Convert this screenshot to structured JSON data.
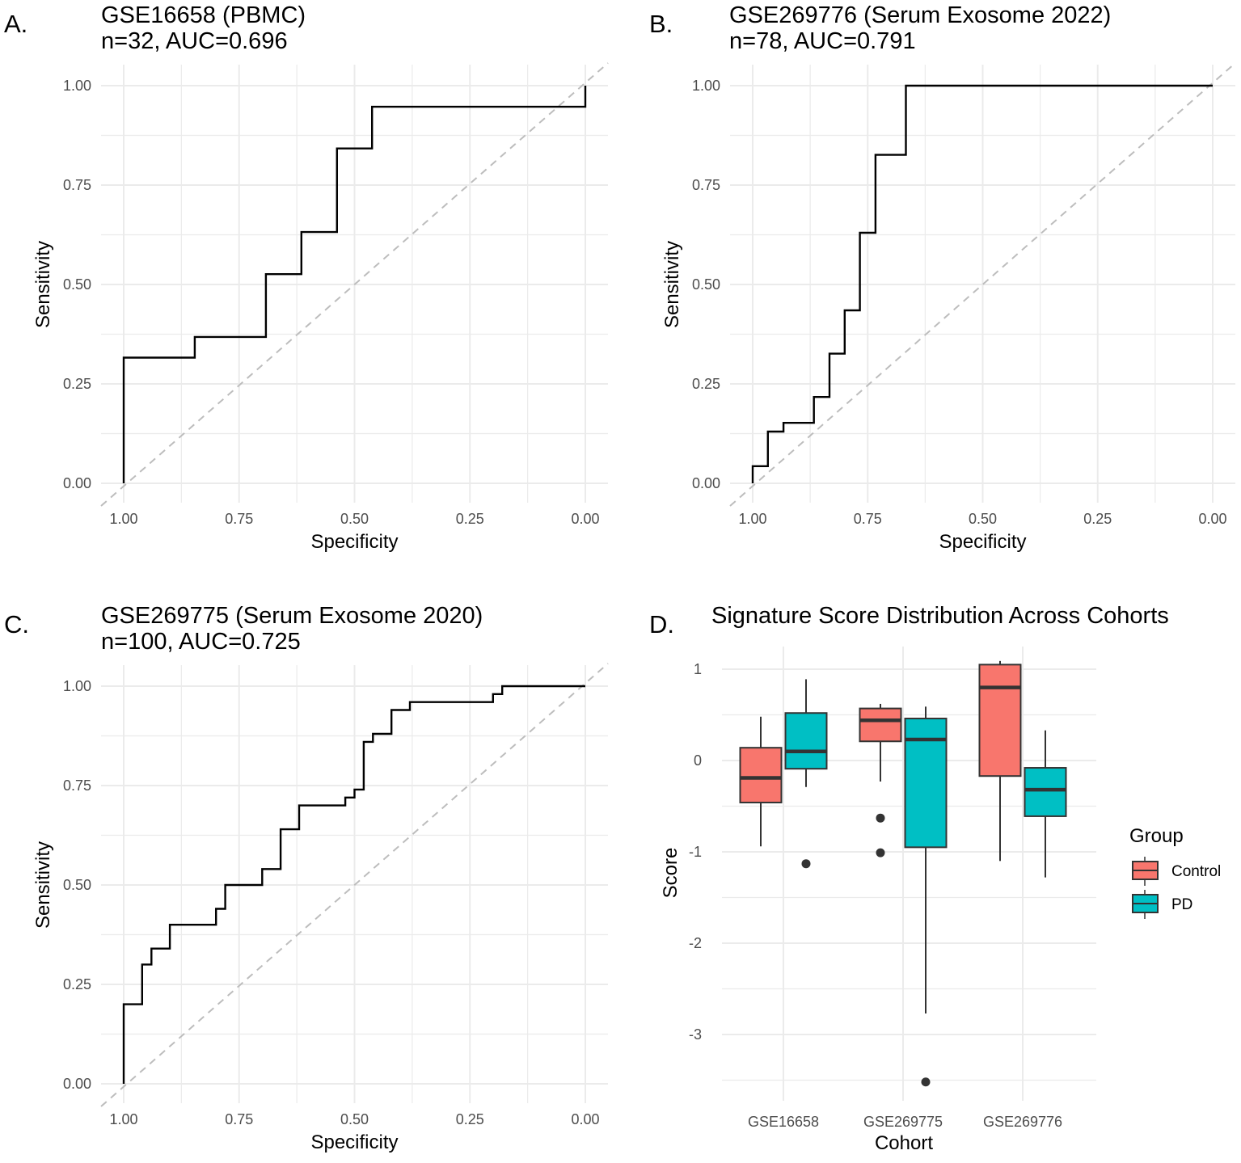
{
  "chart_data": [
    {
      "panel_label": "A.",
      "type": "line",
      "title": "GSE16658 (PBMC)",
      "subtitle": "n=32, AUC=0.696",
      "xlabel": "Specificity",
      "ylabel": "Sensitivity",
      "xlim": [
        1,
        0
      ],
      "ylim": [
        0,
        1
      ],
      "x_reversed": true,
      "grid": true,
      "xticks": [
        "1.00",
        "0.75",
        "0.50",
        "0.25",
        "0.00"
      ],
      "yticks": [
        "0.00",
        "0.25",
        "0.50",
        "0.75",
        "1.00"
      ],
      "reference_line": "diagonal dashed",
      "steps": [
        [
          1,
          0
        ],
        [
          1,
          0.316
        ],
        [
          0.846,
          0.316
        ],
        [
          0.846,
          0.368
        ],
        [
          0.692,
          0.368
        ],
        [
          0.692,
          0.526
        ],
        [
          0.615,
          0.526
        ],
        [
          0.615,
          0.632
        ],
        [
          0.538,
          0.632
        ],
        [
          0.538,
          0.842
        ],
        [
          0.462,
          0.842
        ],
        [
          0.462,
          0.947
        ],
        [
          0,
          0.947
        ],
        [
          0,
          1
        ]
      ]
    },
    {
      "panel_label": "B.",
      "type": "line",
      "title": "GSE269776 (Serum Exosome 2022)",
      "subtitle": "n=78, AUC=0.791",
      "xlabel": "Specificity",
      "ylabel": "Sensitivity",
      "xlim": [
        1,
        0
      ],
      "ylim": [
        0,
        1
      ],
      "x_reversed": true,
      "grid": true,
      "xticks": [
        "1.00",
        "0.75",
        "0.50",
        "0.25",
        "0.00"
      ],
      "yticks": [
        "0.00",
        "0.25",
        "0.50",
        "0.75",
        "1.00"
      ],
      "reference_line": "diagonal dashed",
      "steps": [
        [
          1,
          0
        ],
        [
          1,
          0.043
        ],
        [
          0.967,
          0.043
        ],
        [
          0.967,
          0.13
        ],
        [
          0.933,
          0.13
        ],
        [
          0.933,
          0.152
        ],
        [
          0.867,
          0.152
        ],
        [
          0.867,
          0.217
        ],
        [
          0.833,
          0.217
        ],
        [
          0.833,
          0.326
        ],
        [
          0.8,
          0.326
        ],
        [
          0.8,
          0.435
        ],
        [
          0.767,
          0.435
        ],
        [
          0.767,
          0.63
        ],
        [
          0.733,
          0.63
        ],
        [
          0.733,
          0.826
        ],
        [
          0.667,
          0.826
        ],
        [
          0.667,
          1
        ],
        [
          0,
          1
        ]
      ]
    },
    {
      "panel_label": "C.",
      "type": "line",
      "title": "GSE269775 (Serum Exosome 2020)",
      "subtitle": "n=100, AUC=0.725",
      "xlabel": "Specificity",
      "ylabel": "Sensitivity",
      "xlim": [
        1,
        0
      ],
      "ylim": [
        0,
        1
      ],
      "x_reversed": true,
      "grid": true,
      "xticks": [
        "1.00",
        "0.75",
        "0.50",
        "0.25",
        "0.00"
      ],
      "yticks": [
        "0.00",
        "0.25",
        "0.50",
        "0.75",
        "1.00"
      ],
      "reference_line": "diagonal dashed",
      "steps": [
        [
          1,
          0
        ],
        [
          1,
          0.2
        ],
        [
          0.96,
          0.2
        ],
        [
          0.96,
          0.3
        ],
        [
          0.94,
          0.3
        ],
        [
          0.94,
          0.34
        ],
        [
          0.9,
          0.34
        ],
        [
          0.9,
          0.4
        ],
        [
          0.8,
          0.4
        ],
        [
          0.8,
          0.44
        ],
        [
          0.78,
          0.44
        ],
        [
          0.78,
          0.5
        ],
        [
          0.7,
          0.5
        ],
        [
          0.7,
          0.54
        ],
        [
          0.66,
          0.54
        ],
        [
          0.66,
          0.64
        ],
        [
          0.62,
          0.64
        ],
        [
          0.62,
          0.7
        ],
        [
          0.52,
          0.7
        ],
        [
          0.52,
          0.72
        ],
        [
          0.5,
          0.72
        ],
        [
          0.5,
          0.74
        ],
        [
          0.48,
          0.74
        ],
        [
          0.48,
          0.86
        ],
        [
          0.46,
          0.86
        ],
        [
          0.46,
          0.88
        ],
        [
          0.42,
          0.88
        ],
        [
          0.42,
          0.94
        ],
        [
          0.38,
          0.94
        ],
        [
          0.38,
          0.96
        ],
        [
          0.2,
          0.96
        ],
        [
          0.2,
          0.98
        ],
        [
          0.18,
          0.98
        ],
        [
          0.18,
          1
        ],
        [
          0,
          1
        ]
      ]
    },
    {
      "panel_label": "D.",
      "type": "box",
      "title": "Signature Score Distribution Across Cohorts",
      "xlabel": "Cohort",
      "ylabel": "Score",
      "categories": [
        "GSE16658",
        "GSE269775",
        "GSE269776"
      ],
      "yticks": [
        "1",
        "0",
        "-1",
        "-2",
        "-3"
      ],
      "ylim": [
        -3.65,
        1.25
      ],
      "grid": true,
      "legend": {
        "title": "Group",
        "placement": "right",
        "entries": [
          "Control",
          "PD"
        ]
      },
      "colors": {
        "Control": "#F8766D",
        "PD": "#00BFC4"
      },
      "series": [
        {
          "name": "Control",
          "boxes": [
            {
              "whisker_low": -0.94,
              "q1": -0.46,
              "median": -0.19,
              "q3": 0.14,
              "whisker_high": 0.48,
              "outliers": []
            },
            {
              "whisker_low": -0.23,
              "q1": 0.21,
              "median": 0.44,
              "q3": 0.57,
              "whisker_high": 0.62,
              "outliers": [
                -0.63,
                -1.01
              ]
            },
            {
              "whisker_low": -1.1,
              "q1": -0.17,
              "median": 0.8,
              "q3": 1.05,
              "whisker_high": 1.09,
              "outliers": []
            }
          ]
        },
        {
          "name": "PD",
          "boxes": [
            {
              "whisker_low": -0.29,
              "q1": -0.09,
              "median": 0.1,
              "q3": 0.52,
              "whisker_high": 0.89,
              "outliers": [
                -1.13
              ]
            },
            {
              "whisker_low": -2.77,
              "q1": -0.95,
              "median": 0.23,
              "q3": 0.46,
              "whisker_high": 0.59,
              "outliers": [
                -3.52
              ]
            },
            {
              "whisker_low": -1.28,
              "q1": -0.61,
              "median": -0.32,
              "q3": -0.08,
              "whisker_high": 0.33,
              "outliers": []
            }
          ]
        }
      ]
    }
  ]
}
